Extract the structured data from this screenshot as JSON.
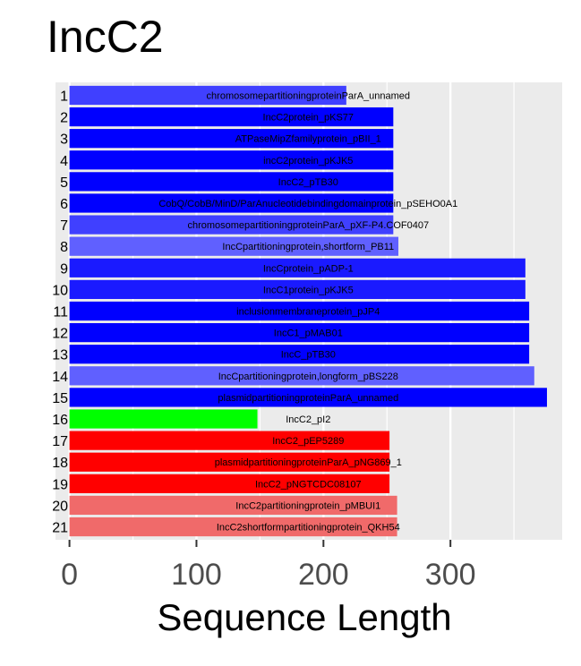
{
  "chart_data": {
    "type": "bar",
    "orientation": "horizontal",
    "title": "IncC2",
    "xlabel": "Sequence Length",
    "ylabel": "",
    "xlim": [
      -11,
      388
    ],
    "x_ticks": [
      0,
      100,
      200,
      300
    ],
    "grid": true,
    "legend": "none",
    "categories": [
      "1",
      "2",
      "3",
      "4",
      "5",
      "6",
      "7",
      "8",
      "9",
      "10",
      "11",
      "12",
      "13",
      "14",
      "15",
      "16",
      "17",
      "18",
      "19",
      "20",
      "21"
    ],
    "labels": [
      "chromosomepartitioningproteinParA_unnamed",
      "IncC2protein_pKS77",
      "ATPaseMipZfamilyprotein_pBII_1",
      "incC2protein_pKJK5",
      "IncC2_pTB30",
      "CobQ/CobB/MinD/ParAnucleotidebindingdomainprotein_pSEHO0A1",
      "chromosomepartitioningproteinParA_pXF-P4.COF0407",
      "IncCpartitioningprotein,shortform_PB11",
      "IncCprotein_pADP-1",
      "IncC1protein_pKJK5",
      "inclusionmembraneprotein_pJP4",
      "IncC1_pMAB01",
      "IncC_pTB30",
      "IncCpartitioningprotein,longform_pBS228",
      "plasmidpartitioningproteinParA_unnamed",
      "IncC2_pI2",
      "IncC2_pEP5289",
      "plasmidpartitioningproteinParA_pNG869_1",
      "IncC2_pNGTCDC08107",
      "IncC2partitioningprotein_pMBUI1",
      "IncC2shortformpartitioningprotein_QKH54"
    ],
    "values": [
      218,
      255,
      255,
      255,
      255,
      255,
      255,
      259,
      359,
      359,
      362,
      362,
      362,
      366,
      376,
      148,
      252,
      252,
      252,
      258,
      258
    ],
    "colors": [
      "#4040FF",
      "#0000FF",
      "#0000FF",
      "#0000FF",
      "#0000FF",
      "#0000FF",
      "#4040FF",
      "#6060FF",
      "#1A1AFF",
      "#1A1AFF",
      "#0000FF",
      "#0000FF",
      "#0000FF",
      "#6060FF",
      "#0000FF",
      "#00FF00",
      "#FF0000",
      "#FF0000",
      "#FF0000",
      "#F06A6A",
      "#F06A6A"
    ],
    "panel_color": "#EBEBEB",
    "grid_color": "#FFFFFF"
  }
}
